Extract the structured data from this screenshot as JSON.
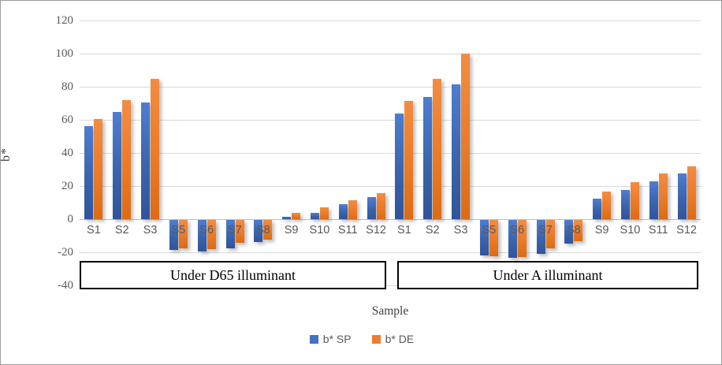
{
  "window": {
    "background": "#ffffff",
    "border_color": "#9e9e9e"
  },
  "chart_data": {
    "type": "bar",
    "title": "",
    "ylabel": "b*",
    "xlabel": "Sample",
    "ylim": [
      -40,
      120
    ],
    "yticks": [
      120,
      100,
      80,
      60,
      40,
      20,
      0,
      -20,
      -40
    ],
    "grid": true,
    "legend_position": "bottom",
    "gridline_color": "#d9d9d9",
    "zero_line_color": "#bfbfbf",
    "categories": [
      "S1",
      "S2",
      "S3",
      "S5",
      "S6",
      "S7",
      "S8",
      "S9",
      "S10",
      "S11",
      "S12"
    ],
    "groups": [
      {
        "label": "Under D65 illuminant",
        "series": [
          {
            "name": "b* SP",
            "color": "#4472C4",
            "values": [
              56,
              65,
              70.5,
              -18,
              -19,
              -17,
              -13.5,
              1.5,
              4,
              9,
              13.5
            ]
          },
          {
            "name": "b* DE",
            "color": "#ED7D31",
            "values": [
              60.5,
              72,
              85,
              -17,
              -17.5,
              -14,
              -12,
              4,
              7,
              11.5,
              15.5
            ]
          }
        ]
      },
      {
        "label": "Under A illuminant",
        "series": [
          {
            "name": "b* SP",
            "color": "#4472C4",
            "values": [
              64,
              74,
              81.5,
              -21.5,
              -23,
              -20.5,
              -14.5,
              12.5,
              17.5,
              23,
              27.5
            ]
          },
          {
            "name": "b* DE",
            "color": "#ED7D31",
            "values": [
              71.5,
              85,
              100,
              -22,
              -22.5,
              -17,
              -13,
              16.5,
              22.5,
              27.5,
              32
            ]
          }
        ]
      }
    ],
    "legend": [
      {
        "label": "b* SP",
        "color": "#4472C4"
      },
      {
        "label": "b* DE",
        "color": "#ED7D31"
      }
    ]
  }
}
